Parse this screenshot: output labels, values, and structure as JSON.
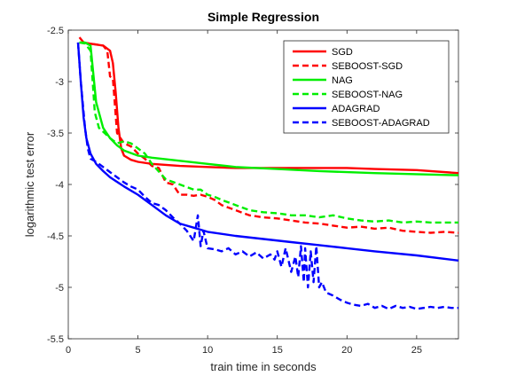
{
  "chart_data": {
    "type": "line",
    "title": "Simple Regression",
    "xlabel": "train time in seconds",
    "ylabel": "logarithmic test error",
    "xlim": [
      0,
      28
    ],
    "ylim": [
      -5.5,
      -2.5
    ],
    "xticks": [
      0,
      5,
      10,
      15,
      20,
      25
    ],
    "yticks": [
      -2.5,
      -3,
      -3.5,
      -4,
      -4.5,
      -5,
      -5.5
    ],
    "xtick_labels": [
      "0",
      "5",
      "10",
      "15",
      "20",
      "25"
    ],
    "ytick_labels": [
      "-2.5",
      "-3",
      "-3.5",
      "-4",
      "-4.5",
      "-5",
      "-5.5"
    ],
    "grid": false,
    "legend_position": "top-right",
    "series": [
      {
        "name": "SGD",
        "color": "#ff0000",
        "dash": "solid",
        "x": [
          0.8,
          1.1,
          1.5,
          2.0,
          2.5,
          3.0,
          3.2,
          3.4,
          3.6,
          3.8,
          4.0,
          4.5,
          5.0,
          6.0,
          8.0,
          10.0,
          12.0,
          15.0,
          18.0,
          20.0,
          22.0,
          25.0,
          28.0
        ],
        "y": [
          -2.57,
          -2.62,
          -2.63,
          -2.64,
          -2.65,
          -2.7,
          -2.82,
          -3.1,
          -3.45,
          -3.65,
          -3.72,
          -3.76,
          -3.78,
          -3.8,
          -3.82,
          -3.83,
          -3.84,
          -3.84,
          -3.84,
          -3.84,
          -3.85,
          -3.86,
          -3.89
        ]
      },
      {
        "name": "SEBOOST-SGD",
        "color": "#ff0000",
        "dash": "dashed",
        "x": [
          1.0,
          1.5,
          2.0,
          2.5,
          2.8,
          3.0,
          3.2,
          3.5,
          4.0,
          4.5,
          5.0,
          5.5,
          6.0,
          6.5,
          7.0,
          7.5,
          8.0,
          8.5,
          9.0,
          9.5,
          10.0,
          10.5,
          11.0,
          12.0,
          13.0,
          14.0,
          15.0,
          16.0,
          17.0,
          18.0,
          19.0,
          20.0,
          21.0,
          22.0,
          23.0,
          24.0,
          25.0,
          26.0,
          27.0,
          28.0
        ],
        "y": [
          -2.62,
          -2.63,
          -2.64,
          -2.65,
          -2.7,
          -2.95,
          -2.97,
          -3.5,
          -3.6,
          -3.63,
          -3.7,
          -3.75,
          -3.82,
          -3.84,
          -3.98,
          -4.0,
          -4.1,
          -4.1,
          -4.11,
          -4.1,
          -4.12,
          -4.15,
          -4.2,
          -4.25,
          -4.3,
          -4.32,
          -4.33,
          -4.35,
          -4.37,
          -4.38,
          -4.4,
          -4.42,
          -4.41,
          -4.43,
          -4.42,
          -4.45,
          -4.46,
          -4.47,
          -4.46,
          -4.47
        ]
      },
      {
        "name": "NAG",
        "color": "#00ee00",
        "dash": "solid",
        "x": [
          0.8,
          1.2,
          1.6,
          2.0,
          2.5,
          3.0,
          3.5,
          4.0,
          5.0,
          6.0,
          8.0,
          10.0,
          12.0,
          15.0,
          18.0,
          20.0,
          22.0,
          25.0,
          28.0
        ],
        "y": [
          -2.62,
          -2.62,
          -2.65,
          -3.2,
          -3.45,
          -3.55,
          -3.62,
          -3.67,
          -3.72,
          -3.74,
          -3.77,
          -3.8,
          -3.83,
          -3.85,
          -3.87,
          -3.88,
          -3.89,
          -3.9,
          -3.91
        ]
      },
      {
        "name": "SEBOOST-NAG",
        "color": "#00ee00",
        "dash": "dashed",
        "x": [
          0.8,
          1.2,
          1.6,
          1.9,
          2.2,
          2.6,
          3.0,
          3.5,
          4.0,
          4.5,
          5.0,
          5.5,
          6.0,
          7.0,
          8.0,
          9.0,
          9.5,
          10.0,
          10.5,
          11.0,
          12.0,
          13.0,
          14.0,
          15.0,
          16.0,
          17.0,
          18.0,
          19.0,
          20.0,
          21.0,
          22.0,
          23.0,
          24.0,
          25.0,
          26.0,
          27.0,
          28.0
        ],
        "y": [
          -2.62,
          -2.63,
          -2.7,
          -3.3,
          -3.45,
          -3.5,
          -3.55,
          -3.6,
          -3.58,
          -3.6,
          -3.65,
          -3.7,
          -3.8,
          -3.95,
          -4.0,
          -4.05,
          -4.05,
          -4.1,
          -4.12,
          -4.15,
          -4.2,
          -4.25,
          -4.27,
          -4.28,
          -4.3,
          -4.3,
          -4.32,
          -4.3,
          -4.33,
          -4.35,
          -4.36,
          -4.35,
          -4.37,
          -4.36,
          -4.37,
          -4.37,
          -4.37
        ]
      },
      {
        "name": "ADAGRAD",
        "color": "#0000ff",
        "dash": "solid",
        "x": [
          0.7,
          0.9,
          1.1,
          1.3,
          1.6,
          2.0,
          2.5,
          3.0,
          4.0,
          5.0,
          6.0,
          7.0,
          8.0,
          9.0,
          10.0,
          12.0,
          14.0,
          16.0,
          18.0,
          20.0,
          22.0,
          25.0,
          28.0
        ],
        "y": [
          -2.62,
          -3.0,
          -3.35,
          -3.55,
          -3.7,
          -3.8,
          -3.87,
          -3.93,
          -4.02,
          -4.1,
          -4.2,
          -4.3,
          -4.38,
          -4.42,
          -4.46,
          -4.5,
          -4.53,
          -4.56,
          -4.59,
          -4.62,
          -4.65,
          -4.69,
          -4.74
        ]
      },
      {
        "name": "SEBOOST-ADAGRAD",
        "color": "#0000ff",
        "dash": "dashed",
        "x": [
          0.7,
          0.9,
          1.0,
          1.1,
          1.2,
          1.4,
          1.6,
          2.0,
          2.5,
          3.0,
          3.5,
          4.0,
          4.5,
          5.0,
          5.5,
          6.0,
          6.5,
          7.0,
          7.5,
          8.0,
          8.5,
          9.0,
          9.3,
          9.5,
          9.7,
          10.0,
          10.5,
          11.0,
          11.5,
          12.0,
          12.5,
          13.0,
          13.5,
          14.0,
          14.5,
          14.8,
          15.0,
          15.3,
          15.6,
          16.0,
          16.3,
          16.5,
          16.7,
          16.9,
          17.0,
          17.2,
          17.4,
          17.6,
          17.8,
          18.0,
          18.2,
          18.5,
          19.0,
          19.5,
          20.0,
          20.5,
          21.0,
          21.5,
          22.0,
          22.5,
          23.0,
          23.5,
          24.0,
          24.5,
          25.0,
          25.5,
          26.0,
          26.5,
          27.0,
          27.5,
          28.0
        ],
        "y": [
          -2.62,
          -3.0,
          -3.15,
          -3.3,
          -3.45,
          -3.65,
          -3.75,
          -3.78,
          -3.83,
          -3.88,
          -3.93,
          -3.98,
          -4.02,
          -4.05,
          -4.12,
          -4.18,
          -4.2,
          -4.25,
          -4.32,
          -4.38,
          -4.45,
          -4.55,
          -4.3,
          -4.6,
          -4.45,
          -4.62,
          -4.63,
          -4.65,
          -4.62,
          -4.68,
          -4.65,
          -4.7,
          -4.66,
          -4.72,
          -4.68,
          -4.73,
          -4.65,
          -4.8,
          -4.62,
          -4.85,
          -4.7,
          -4.9,
          -4.6,
          -4.95,
          -4.62,
          -5.0,
          -4.65,
          -4.95,
          -4.6,
          -5.0,
          -4.95,
          -5.05,
          -5.08,
          -5.12,
          -5.15,
          -5.17,
          -5.18,
          -5.16,
          -5.2,
          -5.18,
          -5.21,
          -5.18,
          -5.2,
          -5.19,
          -5.21,
          -5.2,
          -5.19,
          -5.2,
          -5.19,
          -5.2,
          -5.2
        ]
      }
    ]
  }
}
